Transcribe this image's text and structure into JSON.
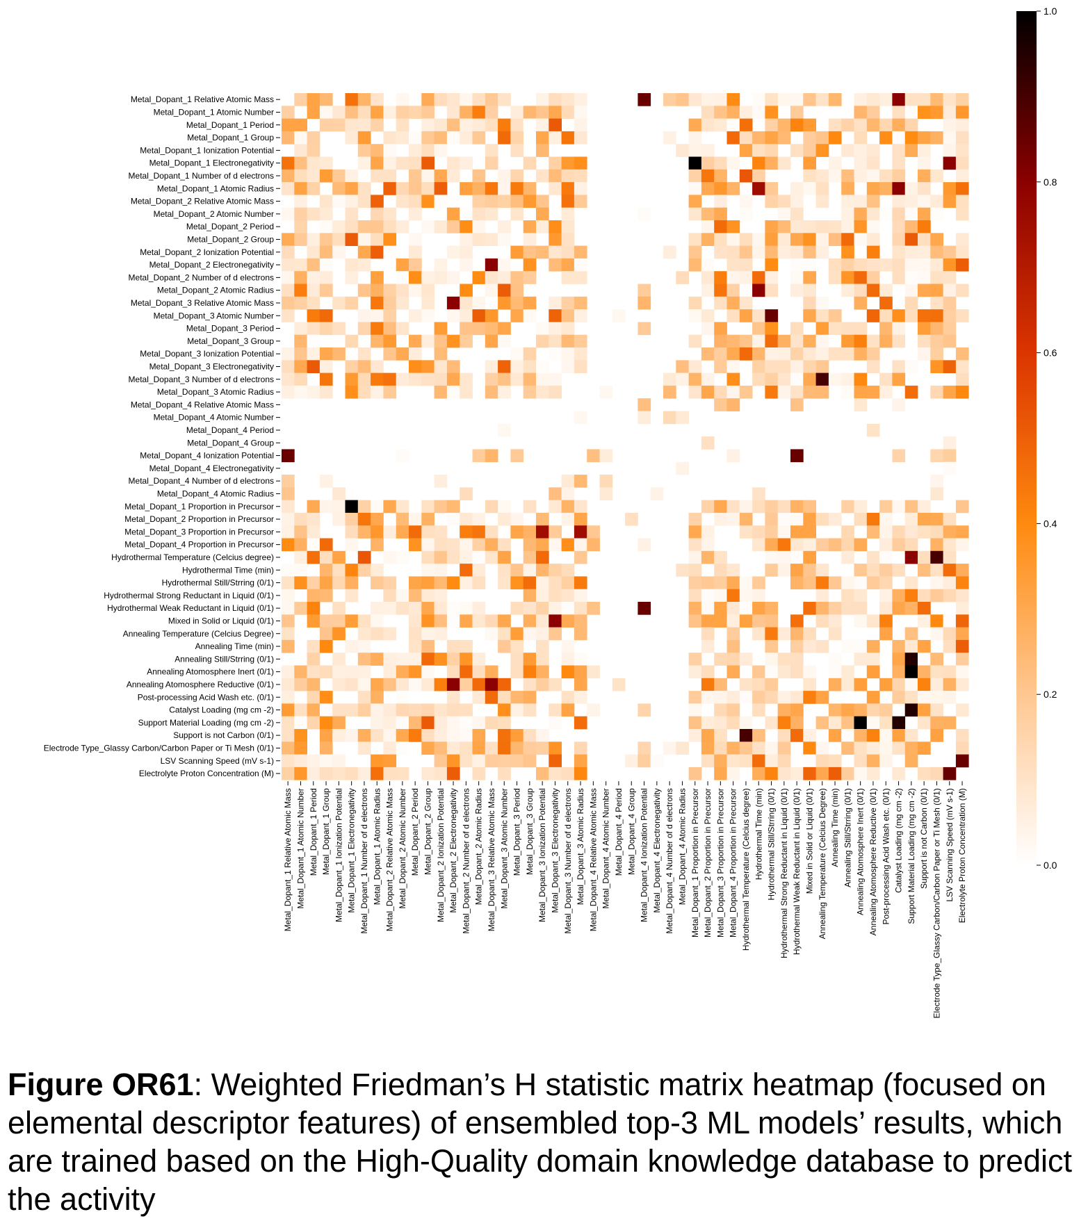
{
  "caption": {
    "label": "Figure OR61",
    "text": ": Weighted Friedman’s H statistic matrix heatmap (focused on elemental descriptor features) of ensembled top-3 ML models’ results, which are trained based on the High-Quality domain knowledge database to predict the activity"
  },
  "chart_data": {
    "type": "heatmap",
    "features": [
      "Metal_Dopant_1 Relative Atomic Mass",
      "Metal_Dopant_1 Atomic Number",
      "Metal_Dopant_1 Period",
      "Metal_Dopant_1 Group",
      "Metal_Dopant_1 Ionization Potential",
      "Metal_Dopant_1 Electronegativity",
      "Metal_Dopant_1 Number of d electrons",
      "Metal_Dopant_1 Atomic Radius",
      "Metal_Dopant_2 Relative Atomic Mass",
      "Metal_Dopant_2 Atomic Number",
      "Metal_Dopant_2 Period",
      "Metal_Dopant_2 Group",
      "Metal_Dopant_2 Ionization Potential",
      "Metal_Dopant_2 Electronegativity",
      "Metal_Dopant_2 Number of d electrons",
      "Metal_Dopant_2 Atomic Radius",
      "Metal_Dopant_3 Relative Atomic Mass",
      "Metal_Dopant_3 Atomic Number",
      "Metal_Dopant_3 Period",
      "Metal_Dopant_3 Group",
      "Metal_Dopant_3 Ionization Potential",
      "Metal_Dopant_3 Electronegativity",
      "Metal_Dopant_3 Number of d electrons",
      "Metal_Dopant_3 Atomic Radius",
      "Metal_Dopant_4 Relative Atomic Mass",
      "Metal_Dopant_4 Atomic Number",
      "Metal_Dopant_4 Period",
      "Metal_Dopant_4 Group",
      "Metal_Dopant_4 Ionization Potential",
      "Metal_Dopant_4 Electronegativity",
      "Metal_Dopant_4 Number of d electrons",
      "Metal_Dopant_4 Atomic Radius",
      "Metal_Dopant_1 Proportion in Precursor",
      "Metal_Dopant_2 Proportion in Precursor",
      "Metal_Dopant_3 Proportion in Precursor",
      "Metal_Dopant_4 Proportion in Precursor",
      "Hydrothermal Temperature (Celcius degree)",
      "Hydrothermal Time (min)",
      "Hydrothermal Still/Strring (0/1)",
      "Hydrothermal Strong Reductant in Liquid (0/1)",
      "Hydrothermal Weak Reductant in Liquid (0/1)",
      "Mixed in Solid or Liquid (0/1)",
      "Annealing Temperature (Celcius Degree)",
      "Annealing Time (min)",
      "Annealing Still/Strring (0/1)",
      "Annealing Atomosphere Inert (0/1)",
      "Annealing Atomosphere Reductive (0/1)",
      "Post-processing Acid Wash etc. (0/1)",
      "Catalyst Loading (mg cm -2)",
      "Support Material Loading (mg cm -2)",
      "Support is not Carbon (0/1)",
      "Electrode Type_Glassy Carbon/Carbon Paper or Ti Mesh (0/1)",
      "LSV Scanning Speed (mV s-1)",
      "Electrolyte Proton Concentration (M)"
    ],
    "vmin": 0.0,
    "vmax": 1.0,
    "colormap": "gist_heat_r",
    "colorbar_ticks": [
      "0.0",
      "0.2",
      "0.4",
      "0.6",
      "0.8",
      "1.0"
    ],
    "dense_groups": [
      0,
      1,
      2,
      3
    ],
    "group_bounds": [
      0,
      8,
      16,
      24,
      32,
      36,
      54
    ],
    "notable_cells": [
      {
        "row": 5,
        "col": 32,
        "value": 1.0
      },
      {
        "row": 32,
        "col": 5,
        "value": 1.0
      },
      {
        "row": 45,
        "col": 49,
        "value": 1.0
      },
      {
        "row": 49,
        "col": 45,
        "value": 1.0
      },
      {
        "row": 44,
        "col": 49,
        "value": 0.95
      },
      {
        "row": 49,
        "col": 48,
        "value": 0.95
      },
      {
        "row": 48,
        "col": 49,
        "value": 0.95
      },
      {
        "row": 0,
        "col": 28,
        "value": 0.85
      },
      {
        "row": 28,
        "col": 0,
        "value": 0.85
      },
      {
        "row": 40,
        "col": 28,
        "value": 0.85
      },
      {
        "row": 28,
        "col": 40,
        "value": 0.85
      },
      {
        "row": 17,
        "col": 38,
        "value": 0.85
      },
      {
        "row": 22,
        "col": 42,
        "value": 0.9
      },
      {
        "row": 50,
        "col": 36,
        "value": 0.9
      },
      {
        "row": 36,
        "col": 51,
        "value": 0.9
      },
      {
        "row": 53,
        "col": 52,
        "value": 0.85
      },
      {
        "row": 52,
        "col": 53,
        "value": 0.85
      },
      {
        "row": 0,
        "col": 48,
        "value": 0.8
      },
      {
        "row": 7,
        "col": 48,
        "value": 0.8
      },
      {
        "row": 5,
        "col": 52,
        "value": 0.8
      },
      {
        "row": 7,
        "col": 37,
        "value": 0.75
      },
      {
        "row": 36,
        "col": 49,
        "value": 0.8
      },
      {
        "row": 34,
        "col": 20,
        "value": 0.75
      },
      {
        "row": 34,
        "col": 23,
        "value": 0.75
      },
      {
        "row": 13,
        "col": 16,
        "value": 0.8
      },
      {
        "row": 16,
        "col": 13,
        "value": 0.8
      },
      {
        "row": 15,
        "col": 37,
        "value": 0.8
      },
      {
        "row": 41,
        "col": 21,
        "value": 0.8
      },
      {
        "row": 46,
        "col": 13,
        "value": 0.8
      },
      {
        "row": 46,
        "col": 16,
        "value": 0.8
      }
    ]
  }
}
